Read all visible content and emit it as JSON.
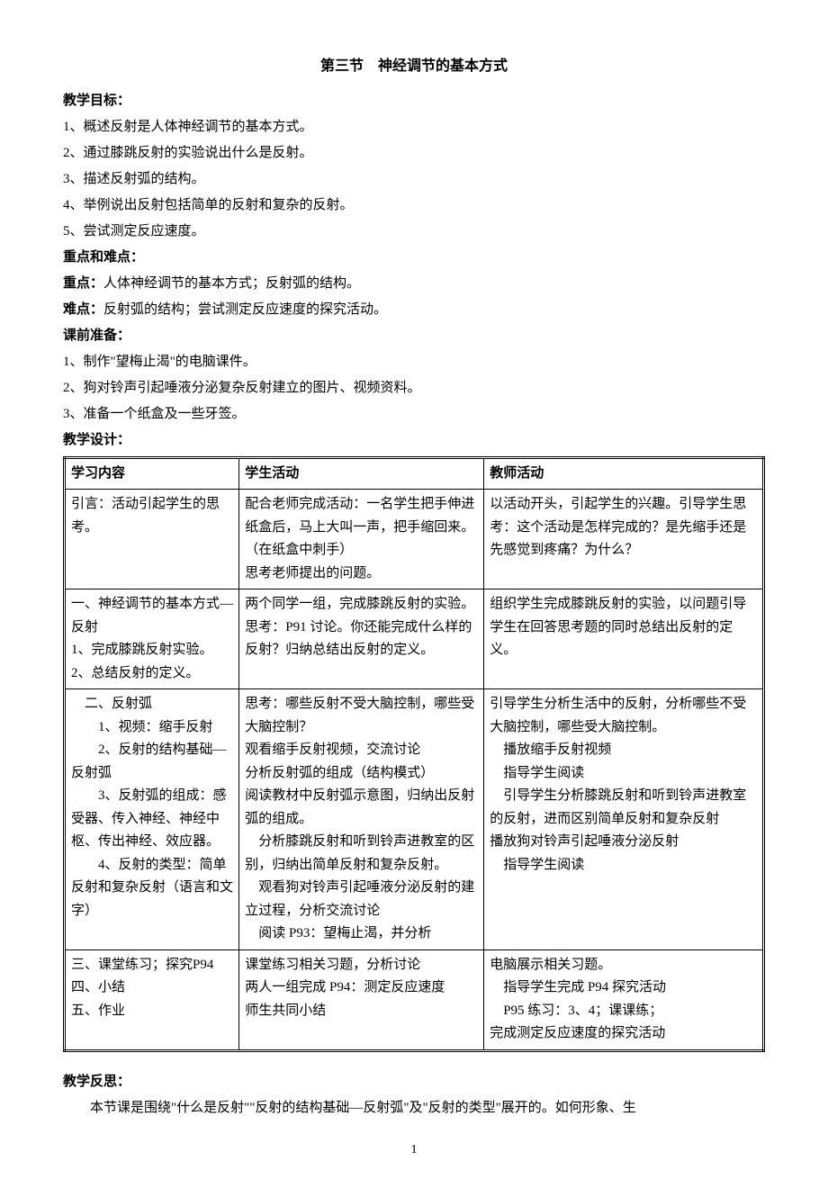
{
  "title": "第三节　神经调节的基本方式",
  "sections": {
    "objectives": {
      "heading": "教学目标：",
      "items": [
        "1、概述反射是人体神经调节的基本方式。",
        "2、通过膝跳反射的实验说出什么是反射。",
        "3、描述反射弧的结构。",
        "4、举例说出反射包括简单的反射和复杂的反射。",
        "5、尝试测定反应速度。"
      ]
    },
    "key_difficult": {
      "heading": "重点和难点：",
      "key_label": "重点：",
      "key_text": "人体神经调节的基本方式；反射弧的结构。",
      "difficult_label": "难点：",
      "difficult_text": "反射弧的结构；尝试测定反应速度的探究活动。"
    },
    "preparation": {
      "heading": "课前准备：",
      "items": [
        "1、制作\"望梅止渴\"的电脑课件。",
        "2、狗对铃声引起唾液分泌复杂反射建立的图片、视频资料。",
        "3、准备一个纸盒及一些牙签。"
      ]
    },
    "design_heading": "教学设计：",
    "table": {
      "headers": {
        "col1": "学习内容",
        "col2": "学生活动",
        "col3": "教师活动"
      },
      "rows": [
        {
          "col1": "引言：活动引起学生的思考。",
          "col2": "配合老师完成活动：一名学生把手伸进纸盒后，马上大叫一声，把手缩回来。（在纸盒中刺手）\n思考老师提出的问题。",
          "col3": "以活动开头，引起学生的兴趣。引导学生思考：这个活动是怎样完成的？是先缩手还是先感觉到疼痛？为什么？"
        },
        {
          "col1": "一、神经调节的基本方式—反射\n1、完成膝跳反射实验。\n2、总结反射的定义。",
          "col2": "两个同学一组，完成膝跳反射的实验。思考：P91 讨论。你还能完成什么样的反射？归纳总结出反射的定义。",
          "col3": "组织学生完成膝跳反射的实验，以问题引导学生在回答思考题的同时总结出反射的定义。"
        },
        {
          "col1": "　二、反射弧\n　　1、视频：缩手反射\n　　2、反射的结构基础—反射弧\n　　3、反射弧的组成：感受器、传入神经、神经中枢、传出神经、效应器。\n　　4、反射的类型：简单反射和复杂反射（语言和文字）",
          "col2": "思考：哪些反射不受大脑控制，哪些受大脑控制？\n观看缩手反射视频，交流讨论\n分析反射弧的组成（结构模式）\n阅读教材中反射弧示意图，归纳出反射弧的组成。\n　分析膝跳反射和听到铃声进教室的区别，归纳出简单反射和复杂反射。\n　观看狗对铃声引起唾液分泌反射的建立过程，分析交流讨论\n　阅读 P93：望梅止渴，并分析",
          "col3": "引导学生分析生活中的反射，分析哪些不受大脑控制，哪些受大脑控制。\n　播放缩手反射视频\n　指导学生阅读\n　引导学生分析膝跳反射和听到铃声进教室的反射，进而区别简单反射和复杂反射\n播放狗对铃声引起唾液分泌反射\n　指导学生阅读"
        },
        {
          "col1": "三、课堂练习；探究P94\n四、小结\n五、作业",
          "col2": "课堂练习相关习题，分析讨论\n两人一组完成 P94：测定反应速度\n师生共同小结",
          "col3": "电脑展示相关习题。\n　指导学生完成 P94 探究活动\n　P95 练习：3、4；课课练；\n完成测定反应速度的探究活动"
        }
      ]
    },
    "reflection": {
      "heading": "教学反思：",
      "body": "本节课是围绕\"什么是反射\"\"反射的结构基础—反射弧\"及\"反射的类型\"展开的。如何形象、生"
    }
  },
  "page_number": "1"
}
